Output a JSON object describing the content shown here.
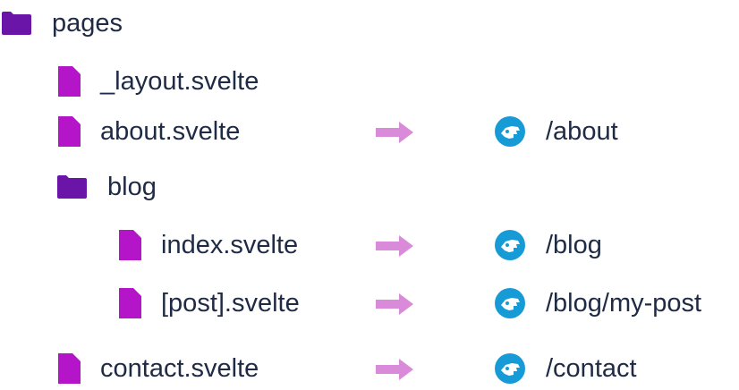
{
  "colors": {
    "folder": "#6a15a8",
    "file": "#b515c8",
    "arrow": "#d98bd9",
    "route_icon": "#179bd6",
    "text": "#1f2a44"
  },
  "tree": [
    {
      "type": "folder",
      "label": "pages",
      "depth": 0,
      "route": null
    },
    {
      "type": "file",
      "label": "_layout.svelte",
      "depth": 1,
      "route": null
    },
    {
      "type": "file",
      "label": "about.svelte",
      "depth": 1,
      "route": "/about"
    },
    {
      "type": "folder",
      "label": "blog",
      "depth": 1,
      "route": null
    },
    {
      "type": "file",
      "label": "index.svelte",
      "depth": 2,
      "route": "/blog"
    },
    {
      "type": "file",
      "label": "[post].svelte",
      "depth": 2,
      "route": "/blog/my-post"
    },
    {
      "type": "file",
      "label": "contact.svelte",
      "depth": 1,
      "route": "/contact"
    }
  ],
  "icons": {
    "folder": "folder-icon",
    "file": "file-icon",
    "arrow": "arrow-right-icon",
    "route": "route-icon"
  }
}
